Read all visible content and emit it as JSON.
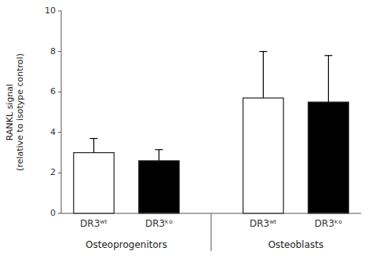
{
  "chart_data": {
    "type": "bar",
    "categories": [
      "DR3ʷᵗ",
      "DR3ᵏᵒ",
      "DR3ʷᵗ",
      "DR3ᵏᵒ"
    ],
    "groups": [
      "Osteoprogenitors",
      "Osteoprogenitors",
      "Osteoblasts",
      "Osteoblasts"
    ],
    "values": [
      3.0,
      2.6,
      5.7,
      5.5
    ],
    "errors": [
      0.7,
      0.55,
      2.3,
      2.3
    ],
    "colors": [
      "white",
      "black",
      "white",
      "black"
    ],
    "ylabel": "RANKL signal\n(relative to isotype control)",
    "ylim": [
      0,
      10
    ],
    "yticks": [
      0,
      2,
      4,
      6,
      8,
      10
    ],
    "grid": false
  }
}
